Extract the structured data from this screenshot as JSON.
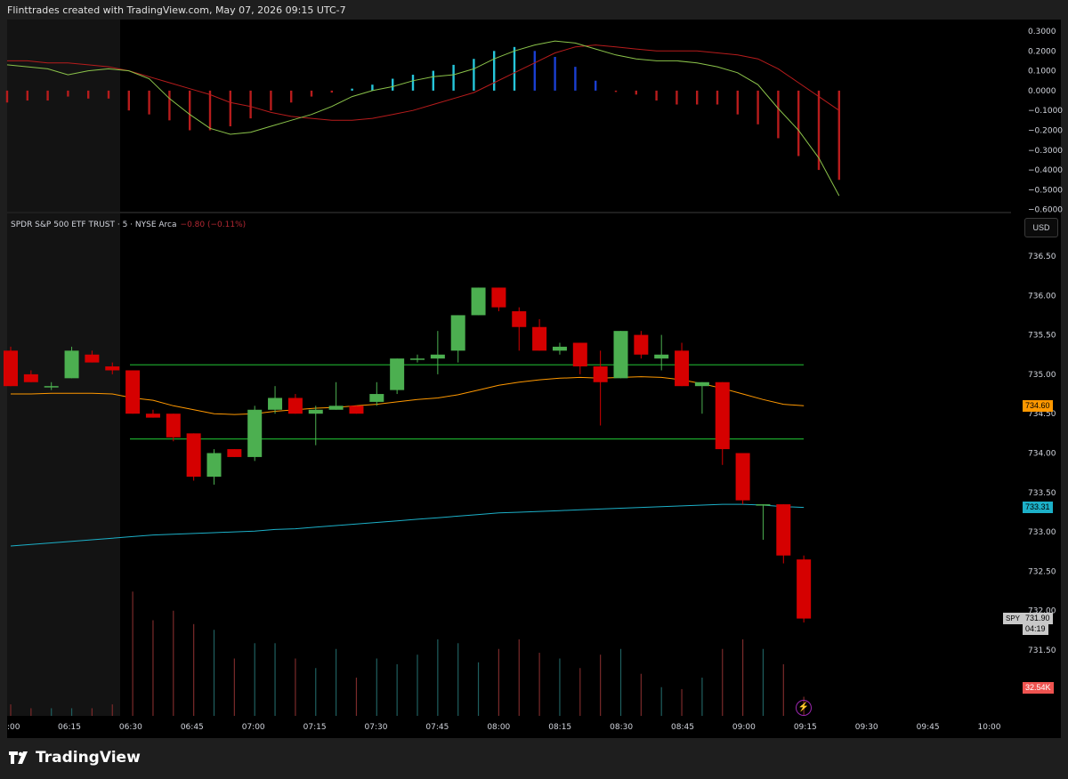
{
  "header": {
    "text": "Flinttrades created with TradingView.com, May 07, 2026 09:15 UTC-7"
  },
  "symbol": {
    "label": "SPDR S&P 500 ETF TRUST · 5 · NYSE Arca",
    "change": "−0.80 (−0.11%)"
  },
  "currency": "USD",
  "brand": "TradingView",
  "colors": {
    "up": "#4caf50",
    "down": "#d50000",
    "macd_line": "#8bc34a",
    "signal_line": "#b71c1c",
    "ema_short": "#ff9800",
    "ema_long": "#1cb0c8",
    "levels": "#1b9e2a",
    "hist_up_strong": "#26c6da",
    "hist_up_weak": "#1a3fd1",
    "hist_down": "#b71c1c"
  },
  "chart_data": [
    {
      "type": "bar",
      "name": "MACD",
      "y_ticks": [
        "0.3000",
        "0.2000",
        "0.1000",
        "0.0000",
        "−0.1000",
        "−0.2000",
        "−0.3000",
        "−0.4000",
        "−0.5000",
        "−0.6000"
      ],
      "ylim": [
        -0.6,
        0.3
      ],
      "histogram": [
        -0.06,
        -0.05,
        -0.05,
        -0.03,
        -0.04,
        -0.04,
        -0.1,
        -0.12,
        -0.15,
        -0.2,
        -0.2,
        -0.18,
        -0.14,
        -0.1,
        -0.06,
        -0.03,
        -0.01,
        0.01,
        0.03,
        0.06,
        0.08,
        0.1,
        0.13,
        0.16,
        0.2,
        0.22,
        0.2,
        0.17,
        0.12,
        0.05,
        0.0,
        -0.02,
        -0.05,
        -0.07,
        -0.07,
        -0.07,
        -0.12,
        -0.17,
        -0.24,
        -0.33,
        -0.4,
        -0.45
      ],
      "macd": [
        0.13,
        0.12,
        0.11,
        0.08,
        0.1,
        0.11,
        0.1,
        0.06,
        -0.04,
        -0.12,
        -0.19,
        -0.22,
        -0.21,
        -0.18,
        -0.15,
        -0.12,
        -0.08,
        -0.03,
        0.0,
        0.02,
        0.05,
        0.07,
        0.08,
        0.11,
        0.16,
        0.2,
        0.23,
        0.25,
        0.24,
        0.21,
        0.18,
        0.16,
        0.15,
        0.15,
        0.14,
        0.12,
        0.09,
        0.03,
        -0.09,
        -0.2,
        -0.34,
        -0.53
      ],
      "signal": [
        0.15,
        0.15,
        0.14,
        0.14,
        0.13,
        0.12,
        0.1,
        0.07,
        0.04,
        0.01,
        -0.02,
        -0.06,
        -0.08,
        -0.11,
        -0.13,
        -0.14,
        -0.15,
        -0.15,
        -0.14,
        -0.12,
        -0.1,
        -0.07,
        -0.04,
        -0.01,
        0.04,
        0.09,
        0.14,
        0.19,
        0.22,
        0.23,
        0.22,
        0.21,
        0.2,
        0.2,
        0.2,
        0.19,
        0.18,
        0.16,
        0.11,
        0.04,
        -0.03,
        -0.1
      ]
    },
    {
      "type": "candlestick",
      "name": "SPY 5",
      "y_ticks": [
        "736.50",
        "736.00",
        "735.50",
        "735.00",
        "734.50",
        "734.00",
        "733.50",
        "733.00",
        "732.50",
        "732.00",
        "731.50"
      ],
      "ylim": [
        731.3,
        736.75
      ],
      "x_ticks": [
        ":00",
        "06:15",
        "06:30",
        "06:45",
        "07:00",
        "07:15",
        "07:30",
        "07:45",
        "08:00",
        "08:15",
        "08:30",
        "08:45",
        "09:00",
        "09:15",
        "09:30",
        "09:45",
        "10:00"
      ],
      "candles": [
        {
          "o": 735.3,
          "h": 735.35,
          "l": 734.85,
          "c": 734.85
        },
        {
          "o": 735.0,
          "h": 735.05,
          "l": 734.9,
          "c": 734.9
        },
        {
          "o": 734.85,
          "h": 734.9,
          "l": 734.8,
          "c": 734.85
        },
        {
          "o": 734.95,
          "h": 735.35,
          "l": 734.95,
          "c": 735.3
        },
        {
          "o": 735.25,
          "h": 735.3,
          "l": 735.15,
          "c": 735.15
        },
        {
          "o": 735.1,
          "h": 735.15,
          "l": 735.0,
          "c": 735.05
        },
        {
          "o": 735.05,
          "h": 735.05,
          "l": 734.5,
          "c": 734.5
        },
        {
          "o": 734.5,
          "h": 734.55,
          "l": 734.45,
          "c": 734.45
        },
        {
          "o": 734.5,
          "h": 734.5,
          "l": 734.15,
          "c": 734.2
        },
        {
          "o": 734.25,
          "h": 734.25,
          "l": 733.65,
          "c": 733.7
        },
        {
          "o": 733.7,
          "h": 734.05,
          "l": 733.6,
          "c": 734.0
        },
        {
          "o": 734.05,
          "h": 734.05,
          "l": 733.95,
          "c": 733.95
        },
        {
          "o": 733.95,
          "h": 734.6,
          "l": 733.9,
          "c": 734.55
        },
        {
          "o": 734.55,
          "h": 734.85,
          "l": 734.5,
          "c": 734.7
        },
        {
          "o": 734.7,
          "h": 734.75,
          "l": 734.5,
          "c": 734.5
        },
        {
          "o": 734.5,
          "h": 734.6,
          "l": 734.1,
          "c": 734.55
        },
        {
          "o": 734.55,
          "h": 734.9,
          "l": 734.55,
          "c": 734.6
        },
        {
          "o": 734.6,
          "h": 734.6,
          "l": 734.5,
          "c": 734.5
        },
        {
          "o": 734.65,
          "h": 734.9,
          "l": 734.6,
          "c": 734.75
        },
        {
          "o": 734.8,
          "h": 735.2,
          "l": 734.75,
          "c": 735.2
        },
        {
          "o": 735.2,
          "h": 735.25,
          "l": 735.15,
          "c": 735.2
        },
        {
          "o": 735.2,
          "h": 735.55,
          "l": 735.0,
          "c": 735.25
        },
        {
          "o": 735.3,
          "h": 735.75,
          "l": 735.15,
          "c": 735.75
        },
        {
          "o": 735.75,
          "h": 736.1,
          "l": 735.75,
          "c": 736.1
        },
        {
          "o": 736.1,
          "h": 736.1,
          "l": 735.8,
          "c": 735.85
        },
        {
          "o": 735.8,
          "h": 735.85,
          "l": 735.3,
          "c": 735.6
        },
        {
          "o": 735.6,
          "h": 735.7,
          "l": 735.3,
          "c": 735.3
        },
        {
          "o": 735.3,
          "h": 735.4,
          "l": 735.25,
          "c": 735.35
        },
        {
          "o": 735.4,
          "h": 735.4,
          "l": 735.0,
          "c": 735.1
        },
        {
          "o": 735.1,
          "h": 735.3,
          "l": 734.35,
          "c": 734.9
        },
        {
          "o": 734.95,
          "h": 735.55,
          "l": 734.95,
          "c": 735.55
        },
        {
          "o": 735.5,
          "h": 735.55,
          "l": 735.2,
          "c": 735.25
        },
        {
          "o": 735.2,
          "h": 735.5,
          "l": 735.05,
          "c": 735.25
        },
        {
          "o": 735.3,
          "h": 735.4,
          "l": 734.85,
          "c": 734.85
        },
        {
          "o": 734.85,
          "h": 734.9,
          "l": 734.5,
          "c": 734.9
        },
        {
          "o": 734.9,
          "h": 734.9,
          "l": 733.85,
          "c": 734.05
        },
        {
          "o": 734.0,
          "h": 734.0,
          "l": 733.35,
          "c": 733.4
        },
        {
          "o": 733.35,
          "h": 733.35,
          "l": 732.9,
          "c": 733.35
        },
        {
          "o": 733.35,
          "h": 733.35,
          "l": 732.6,
          "c": 732.7
        },
        {
          "o": 732.65,
          "h": 732.7,
          "l": 731.85,
          "c": 731.9
        }
      ],
      "ema_short": [
        734.75,
        734.75,
        734.76,
        734.76,
        734.76,
        734.75,
        734.7,
        734.67,
        734.6,
        734.55,
        734.5,
        734.49,
        734.5,
        734.53,
        734.55,
        734.57,
        734.58,
        734.6,
        734.62,
        734.65,
        734.68,
        734.7,
        734.74,
        734.8,
        734.86,
        734.9,
        734.93,
        734.95,
        734.96,
        734.95,
        734.96,
        734.97,
        734.96,
        734.93,
        734.88,
        734.82,
        734.75,
        734.68,
        734.62,
        734.6
      ],
      "ema_long": [
        732.82,
        732.84,
        732.86,
        732.88,
        732.9,
        732.92,
        732.94,
        732.96,
        732.97,
        732.98,
        732.99,
        733.0,
        733.01,
        733.03,
        733.04,
        733.06,
        733.08,
        733.1,
        733.12,
        733.14,
        733.16,
        733.18,
        733.2,
        733.22,
        733.24,
        733.25,
        733.26,
        733.27,
        733.28,
        733.29,
        733.3,
        733.31,
        733.32,
        733.33,
        733.34,
        733.35,
        733.35,
        733.34,
        733.32,
        733.31
      ],
      "levels": [
        735.12,
        734.18
      ],
      "volume": [
        0.06,
        0.04,
        0.04,
        0.04,
        0.04,
        0.06,
        0.65,
        0.5,
        0.55,
        0.48,
        0.45,
        0.3,
        0.38,
        0.38,
        0.3,
        0.25,
        0.35,
        0.2,
        0.3,
        0.27,
        0.32,
        0.4,
        0.38,
        0.28,
        0.35,
        0.4,
        0.33,
        0.3,
        0.25,
        0.32,
        0.35,
        0.22,
        0.15,
        0.14,
        0.2,
        0.35,
        0.4,
        0.35,
        0.27,
        0.1
      ],
      "price_tags": {
        "ema_short": "734.60",
        "ema_long": "733.31",
        "last_symbol": "SPY",
        "last_price": "731.90",
        "countdown": "04:19",
        "volume": "32.54K"
      }
    }
  ]
}
